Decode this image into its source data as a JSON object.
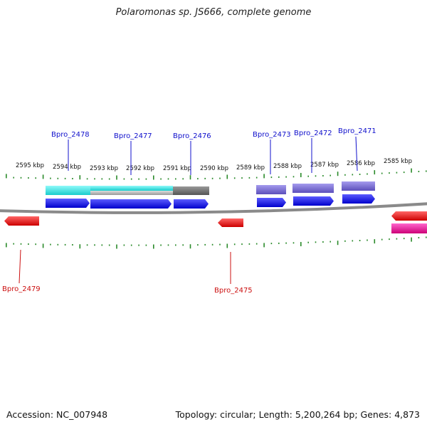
{
  "title": "Polaromonas sp. JS666, complete genome",
  "accession_label": "Accession: NC_007948",
  "topology_label": "Topology: circular; Length: 5,200,264 bp; Genes: 4,873",
  "kbp_labels": [
    "2595 kbp",
    "2594 kbp",
    "2593 kbp",
    "2592 kbp",
    "2591 kbp",
    "2590 kbp",
    "2589 kbp",
    "2588 kbp",
    "2587 kbp",
    "2586 kbp",
    "2585 kbp"
  ],
  "forward_gene_labels": [
    "Bpro_2478",
    "Bpro_2477",
    "Bpro_2476",
    "Bpro_2473",
    "Bpro_2472",
    "Bpro_2471"
  ],
  "reverse_gene_labels": [
    "Bpro_2479",
    "Bpro_2475"
  ],
  "colors": {
    "backbone": "#888888",
    "tick": "#2a8a2a",
    "forward_gene": "#1010ee",
    "reverse_gene": "#ee1010",
    "cyan_feature": "#22dddd",
    "gray_feature": "#aaaaaa",
    "darkgray_feature": "#666666",
    "purple_feature": "#7766cc",
    "magenta_feature": "#ee1099"
  }
}
